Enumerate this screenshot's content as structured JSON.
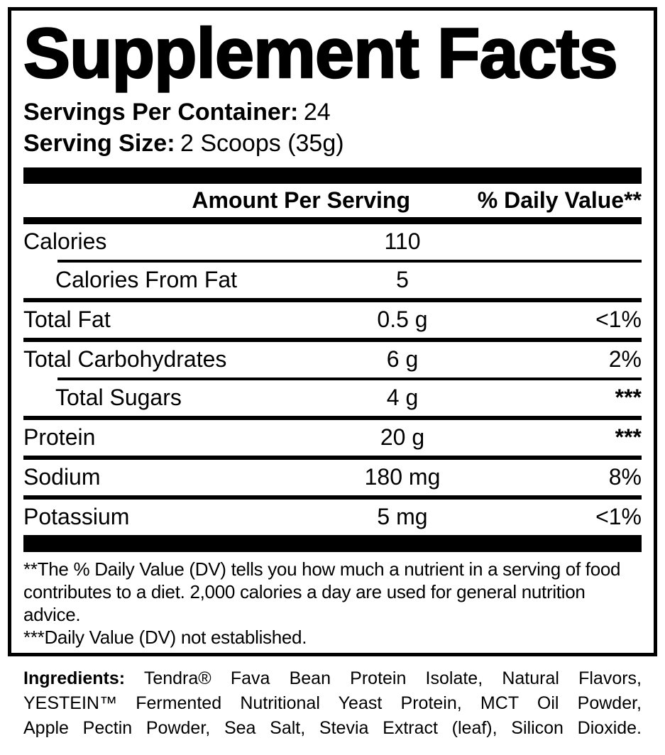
{
  "colors": {
    "text": "#000000",
    "background": "#ffffff"
  },
  "panel": {
    "title": "Supplement Facts",
    "servings_per_container": {
      "label": "Servings Per Container:",
      "value": "24"
    },
    "serving_size": {
      "label": "Serving Size:",
      "value": "2 Scoops (35g)"
    }
  },
  "table": {
    "amount_header": "Amount Per Serving",
    "dv_header": "% Daily Value**",
    "rows": [
      {
        "name": "Calories",
        "amount": "110",
        "dv": "",
        "indent": false
      },
      {
        "name": "Calories From Fat",
        "amount": "5",
        "dv": "",
        "indent": true
      },
      {
        "name": "Total Fat",
        "amount": "0.5 g",
        "dv": "<1%",
        "indent": false
      },
      {
        "name": "Total Carbohydrates",
        "amount": "6 g",
        "dv": "2%",
        "indent": false
      },
      {
        "name": "Total Sugars",
        "amount": "4 g",
        "dv": "***",
        "indent": true
      },
      {
        "name": "Protein",
        "amount": "20 g",
        "dv": "***",
        "indent": false
      },
      {
        "name": "Sodium",
        "amount": "180 mg",
        "dv": "8%",
        "indent": false
      },
      {
        "name": "Potassium",
        "amount": "5 mg",
        "dv": "<1%",
        "indent": false
      }
    ]
  },
  "footnotes": [
    "**The % Daily Value (DV) tells you how much a nutrient in a serving of food contributes to a diet. 2,000 calories a day are used for general nutrition advice.",
    "***Daily Value (DV) not established."
  ],
  "ingredients": {
    "label": "Ingredients:",
    "line1": "Tendra® Fava Bean Protein Isolate, Natural Flavors,",
    "line2": "YESTEIN™ Fermented Nutritional Yeast Protein, MCT Oil Powder,",
    "line3": "Apple Pectin Powder, Sea Salt, Stevia Extract (leaf), Silicon Dioxide."
  }
}
